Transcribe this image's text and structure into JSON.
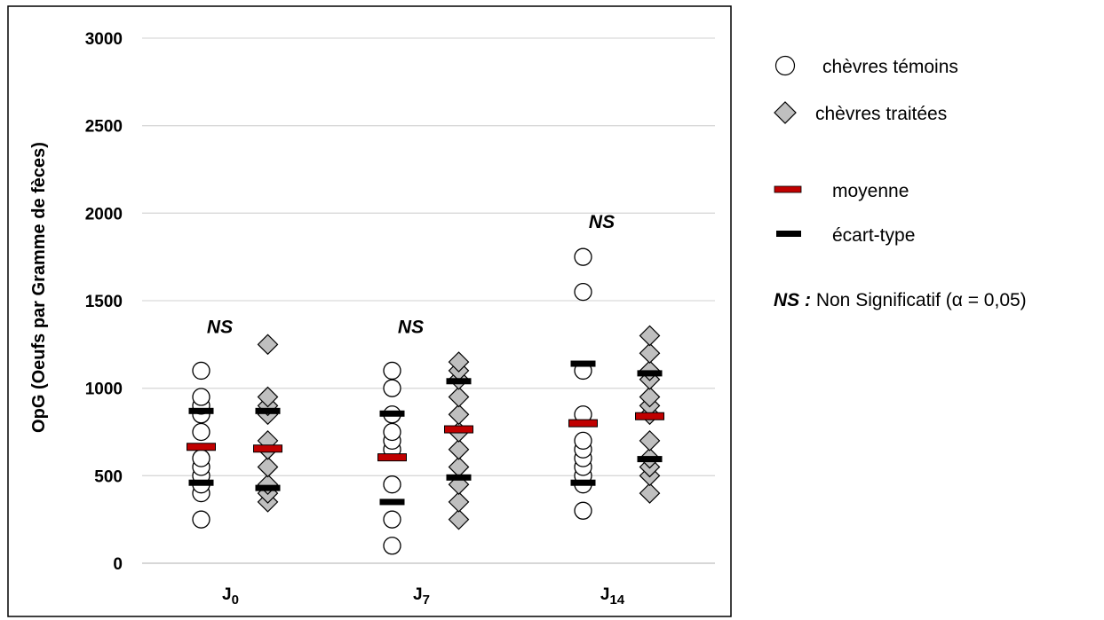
{
  "chart_data": {
    "type": "scatter",
    "ylabel": "OpG (Oeufs par Gramme de fèces)",
    "ylim": [
      0,
      3000
    ],
    "yticks": [
      "0",
      "500",
      "1000",
      "1500",
      "2000",
      "2500",
      "3000"
    ],
    "grid": true,
    "categories": [
      {
        "base": "J",
        "sub": "0"
      },
      {
        "base": "J",
        "sub": "7"
      },
      {
        "base": "J",
        "sub": "14"
      }
    ],
    "significance": [
      "NS",
      "NS",
      "NS"
    ],
    "series": [
      {
        "name": "chèvres témoins",
        "marker": "circle",
        "values": [
          [
            250,
            400,
            450,
            500,
            550,
            600,
            750,
            850,
            900,
            950,
            1100
          ],
          [
            100,
            250,
            450,
            650,
            700,
            750,
            850,
            1000,
            1100
          ],
          [
            300,
            450,
            500,
            550,
            600,
            650,
            700,
            850,
            1100,
            1550,
            1750
          ]
        ],
        "mean": [
          665,
          605,
          800
        ],
        "sd_low": [
          460,
          350,
          460
        ],
        "sd_high": [
          870,
          855,
          1140
        ]
      },
      {
        "name": "chèvres traitées",
        "marker": "diamond",
        "values": [
          [
            350,
            400,
            450,
            550,
            650,
            700,
            850,
            900,
            950,
            1250
          ],
          [
            250,
            350,
            450,
            550,
            650,
            750,
            850,
            950,
            1050,
            1100,
            1150
          ],
          [
            400,
            500,
            550,
            600,
            700,
            850,
            900,
            950,
            1050,
            1100,
            1200,
            1300
          ]
        ],
        "mean": [
          655,
          765,
          840
        ],
        "sd_low": [
          430,
          490,
          595
        ],
        "sd_high": [
          870,
          1040,
          1085
        ]
      }
    ],
    "legend": {
      "placement": "right",
      "items": [
        {
          "label": "chèvres témoins",
          "marker": "circle"
        },
        {
          "label": "chèvres traitées",
          "marker": "diamond"
        },
        {
          "label": "moyenne",
          "marker": "bar",
          "color": "#c00000"
        },
        {
          "label": "écart-type",
          "marker": "bar",
          "color": "#000000"
        }
      ],
      "note_bold": "NS :",
      "note_text": " Non Significatif (α = 0,05)"
    },
    "colors": {
      "mean": "#c00000",
      "sd": "#000000",
      "circle_fill": "#ffffff",
      "diamond_fill": "#bfbfbf",
      "grid": "#d9d9d9"
    }
  }
}
